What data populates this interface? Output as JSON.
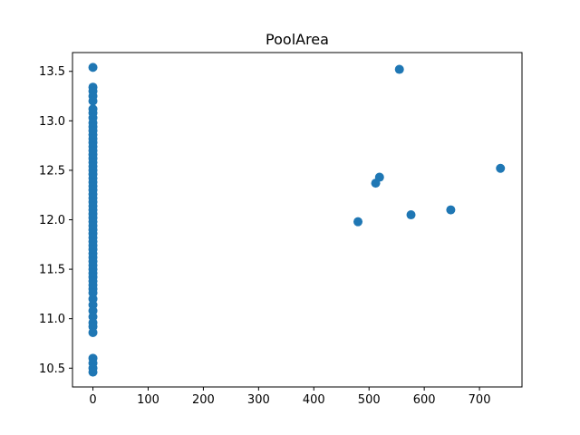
{
  "chart_data": {
    "type": "scatter",
    "title": "PoolArea",
    "xlabel": "",
    "ylabel": "",
    "xlim": [
      -37,
      777
    ],
    "ylim": [
      10.31,
      13.69
    ],
    "xticks": [
      0,
      100,
      200,
      300,
      400,
      500,
      600,
      700
    ],
    "yticks": [
      10.5,
      11.0,
      11.5,
      12.0,
      12.5,
      13.0,
      13.5
    ],
    "ytick_labels": [
      "10.5",
      "11.0",
      "11.5",
      "12.0",
      "12.5",
      "13.0",
      "13.5"
    ],
    "grid": false,
    "point_color": "#1f77b4",
    "points": [
      [
        0,
        13.54
      ],
      [
        0,
        13.34
      ],
      [
        0,
        13.3
      ],
      [
        0,
        13.25
      ],
      [
        0,
        13.2
      ],
      [
        0,
        13.12
      ],
      [
        0,
        13.08
      ],
      [
        0,
        13.03
      ],
      [
        0,
        12.98
      ],
      [
        0,
        12.94
      ],
      [
        0,
        12.9
      ],
      [
        0,
        12.86
      ],
      [
        0,
        12.82
      ],
      [
        0,
        12.78
      ],
      [
        0,
        12.74
      ],
      [
        0,
        12.7
      ],
      [
        0,
        12.66
      ],
      [
        0,
        12.62
      ],
      [
        0,
        12.58
      ],
      [
        0,
        12.54
      ],
      [
        0,
        12.5
      ],
      [
        0,
        12.46
      ],
      [
        0,
        12.42
      ],
      [
        0,
        12.38
      ],
      [
        0,
        12.34
      ],
      [
        0,
        12.3
      ],
      [
        0,
        12.26
      ],
      [
        0,
        12.22
      ],
      [
        0,
        12.18
      ],
      [
        0,
        12.14
      ],
      [
        0,
        12.1
      ],
      [
        0,
        12.06
      ],
      [
        0,
        12.02
      ],
      [
        0,
        11.98
      ],
      [
        0,
        11.94
      ],
      [
        0,
        11.9
      ],
      [
        0,
        11.86
      ],
      [
        0,
        11.82
      ],
      [
        0,
        11.78
      ],
      [
        0,
        11.74
      ],
      [
        0,
        11.7
      ],
      [
        0,
        11.66
      ],
      [
        0,
        11.62
      ],
      [
        0,
        11.58
      ],
      [
        0,
        11.54
      ],
      [
        0,
        11.5
      ],
      [
        0,
        11.46
      ],
      [
        0,
        11.42
      ],
      [
        0,
        11.38
      ],
      [
        0,
        11.34
      ],
      [
        0,
        11.3
      ],
      [
        0,
        11.26
      ],
      [
        0,
        11.2
      ],
      [
        0,
        11.14
      ],
      [
        0,
        11.08
      ],
      [
        0,
        11.02
      ],
      [
        0,
        10.96
      ],
      [
        0,
        10.92
      ],
      [
        0,
        10.86
      ],
      [
        0,
        10.6
      ],
      [
        0,
        10.55
      ],
      [
        0,
        10.5
      ],
      [
        0,
        10.46
      ],
      [
        480,
        11.98
      ],
      [
        512,
        12.37
      ],
      [
        519,
        12.43
      ],
      [
        555,
        13.52
      ],
      [
        576,
        12.05
      ],
      [
        648,
        12.1
      ],
      [
        738,
        12.52
      ]
    ]
  }
}
